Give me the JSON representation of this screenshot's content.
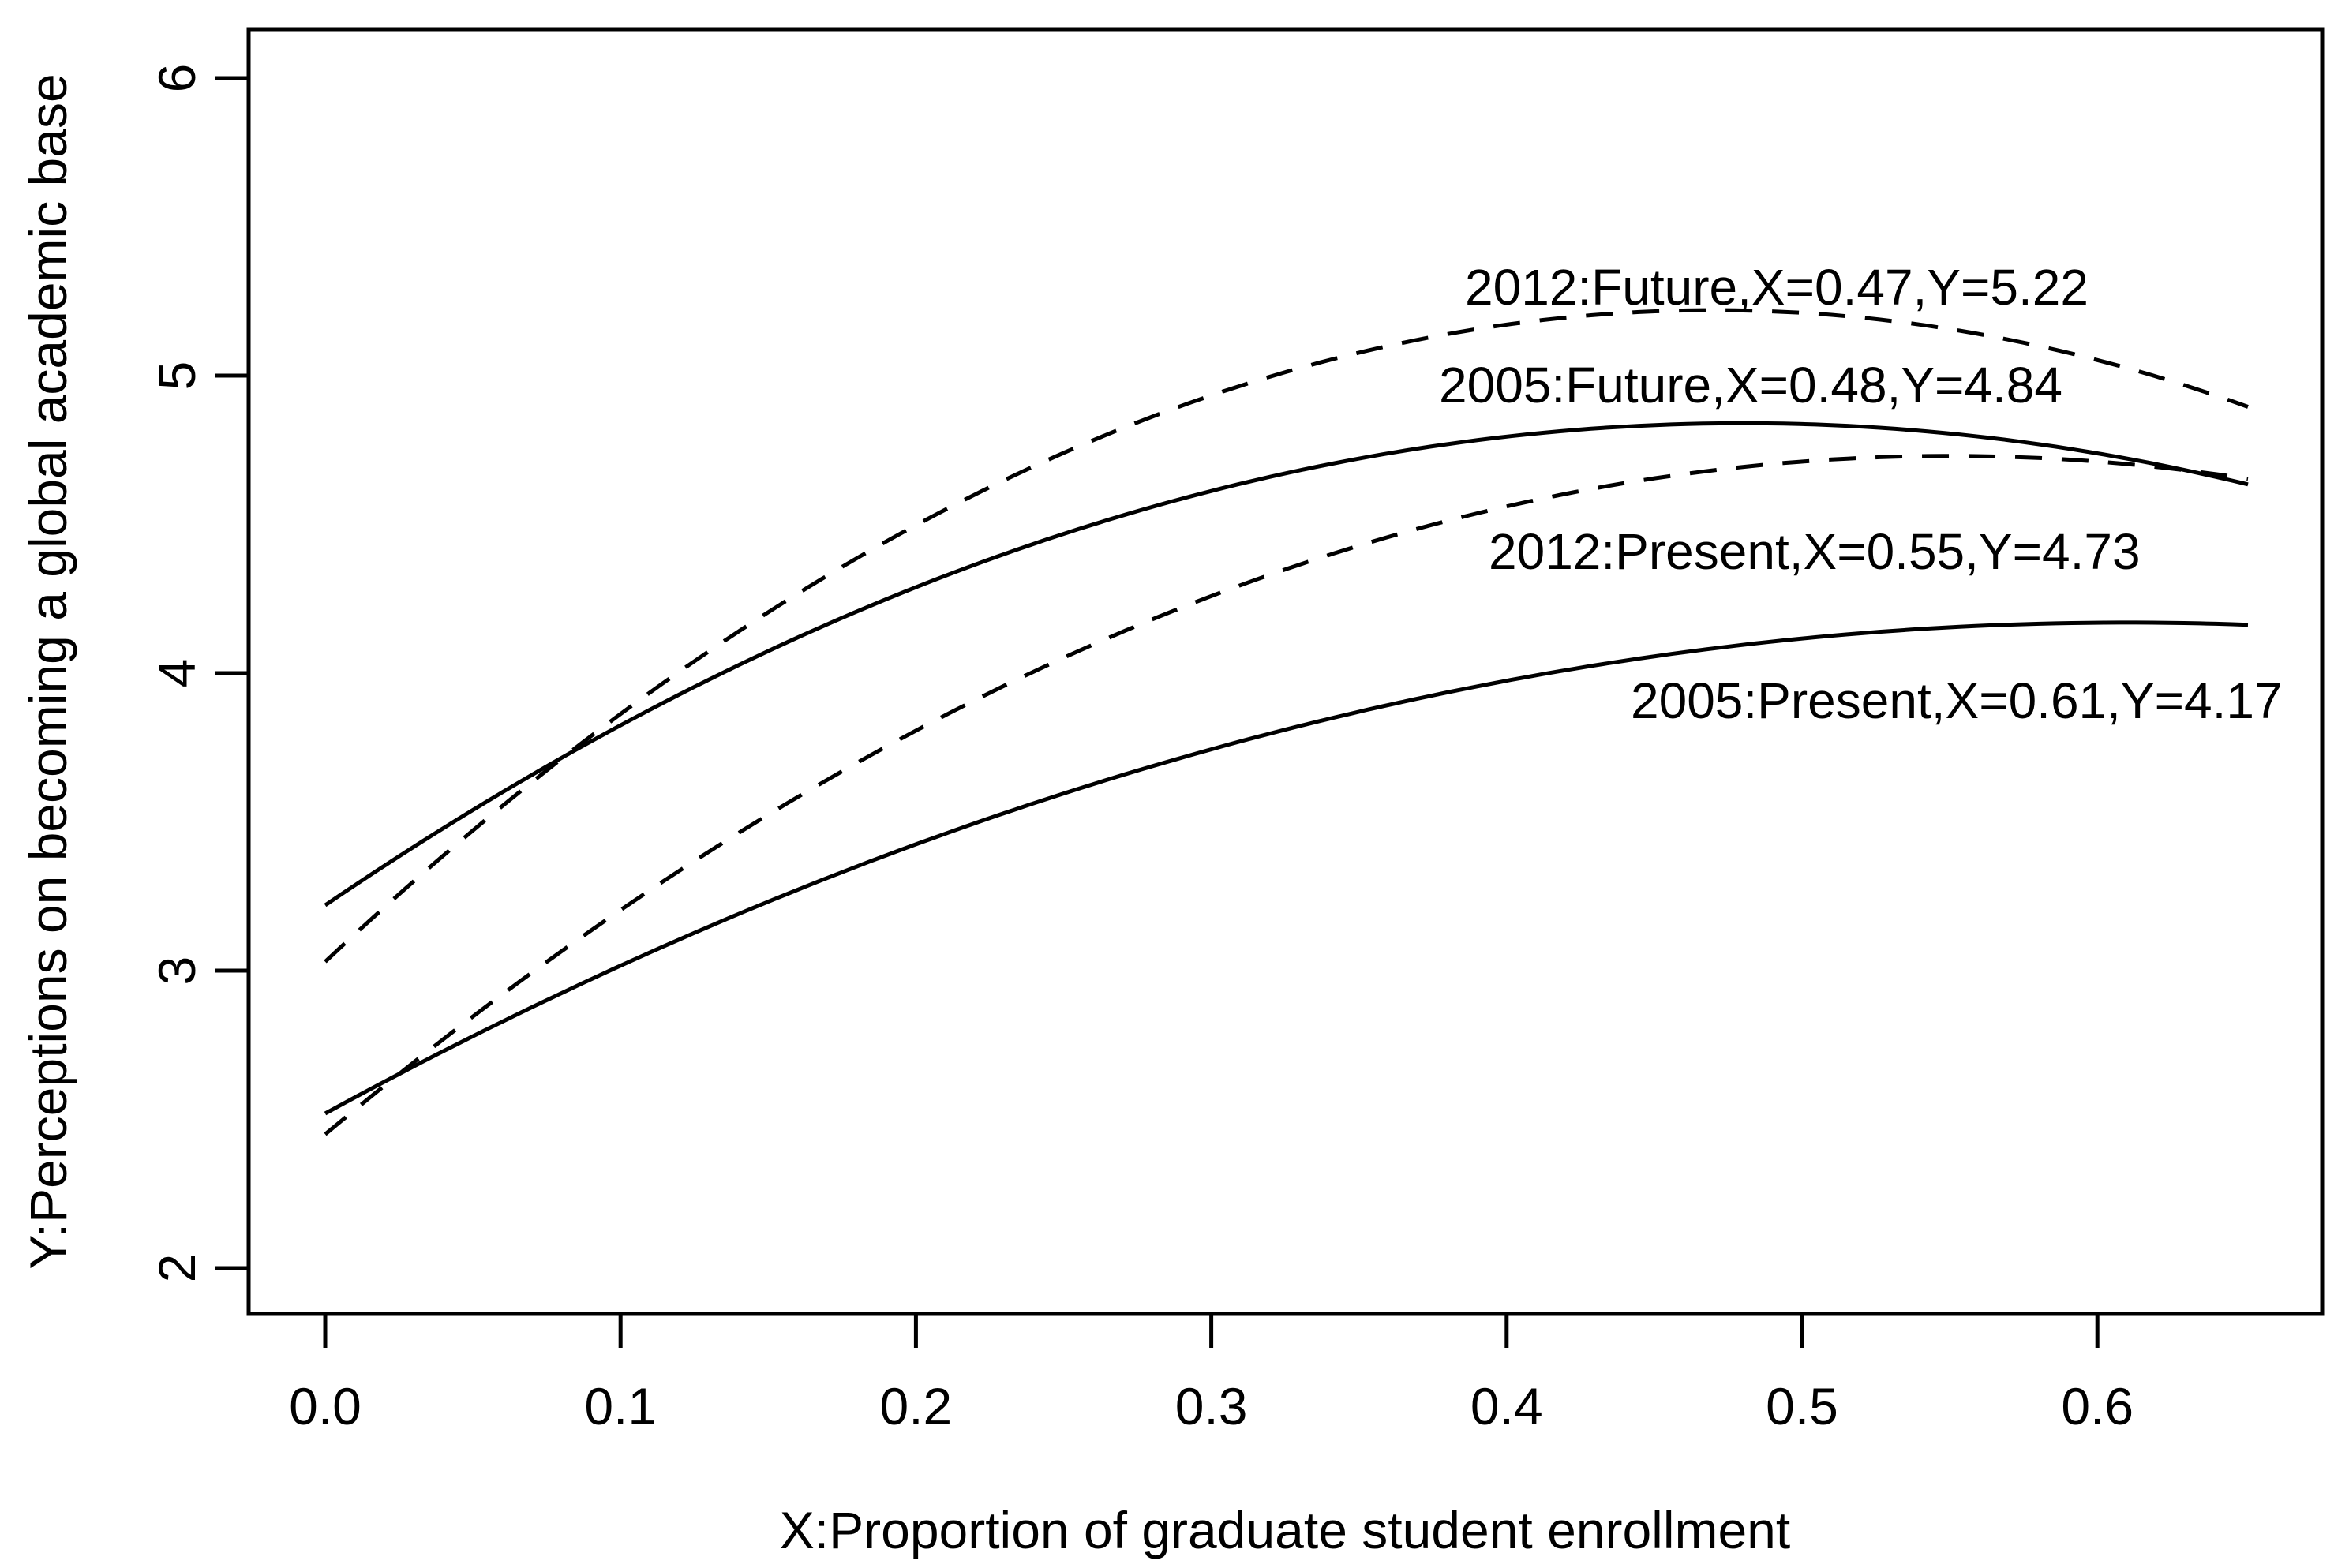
{
  "chart_data": {
    "type": "line",
    "title": "",
    "xlabel": "X:Proportion of graduate student enrollment",
    "ylabel": "Y:Perceptions on becoming a global academic base",
    "x_tick_labels": [
      "0.0",
      "0.1",
      "0.2",
      "0.3",
      "0.4",
      "0.5",
      "0.6"
    ],
    "x_ticks": [
      0.0,
      0.1,
      0.2,
      0.3,
      0.4,
      0.5,
      0.6
    ],
    "y_tick_labels": [
      "2",
      "3",
      "4",
      "5",
      "6"
    ],
    "y_ticks": [
      2,
      3,
      4,
      5,
      6
    ],
    "xlim": [
      -0.026,
      0.676
    ],
    "ylim": [
      1.85,
      6.16
    ],
    "x_domain": [
      0.0,
      0.651
    ],
    "grid": "off",
    "legend": "inline-annotations",
    "line_color": "#000000",
    "background_color": "#ffffff",
    "series": [
      {
        "name": "2012-future",
        "label": "2012:Future,X=0.47,Y=5.22",
        "line_style": "dashed",
        "peak": {
          "x": 0.47,
          "y": 5.22
        },
        "y_at_x0": 3.03,
        "y_at_right_end": 4.9,
        "label_anchor": {
          "x": 0.386,
          "y": 5.3
        }
      },
      {
        "name": "2005-future",
        "label": "2005:Future,X=0.48,Y=4.84",
        "line_style": "solid",
        "peak": {
          "x": 0.48,
          "y": 4.84
        },
        "y_at_x0": 3.22,
        "y_at_right_end": 4.63,
        "label_anchor": {
          "x": 0.377,
          "y": 4.97
        }
      },
      {
        "name": "2012-present",
        "label": "2012:Present,X=0.55,Y=4.73",
        "line_style": "dashed",
        "peak": {
          "x": 0.55,
          "y": 4.73
        },
        "y_at_x0": 2.45,
        "y_at_right_end": 4.65,
        "label_anchor": {
          "x": 0.394,
          "y": 4.41
        }
      },
      {
        "name": "2005-present",
        "label": "2005:Present,X=0.61,Y=4.17",
        "line_style": "solid",
        "peak": {
          "x": 0.61,
          "y": 4.17
        },
        "y_at_x0": 2.52,
        "y_at_right_end": 4.16,
        "label_anchor": {
          "x": 0.442,
          "y": 3.91
        }
      }
    ]
  }
}
